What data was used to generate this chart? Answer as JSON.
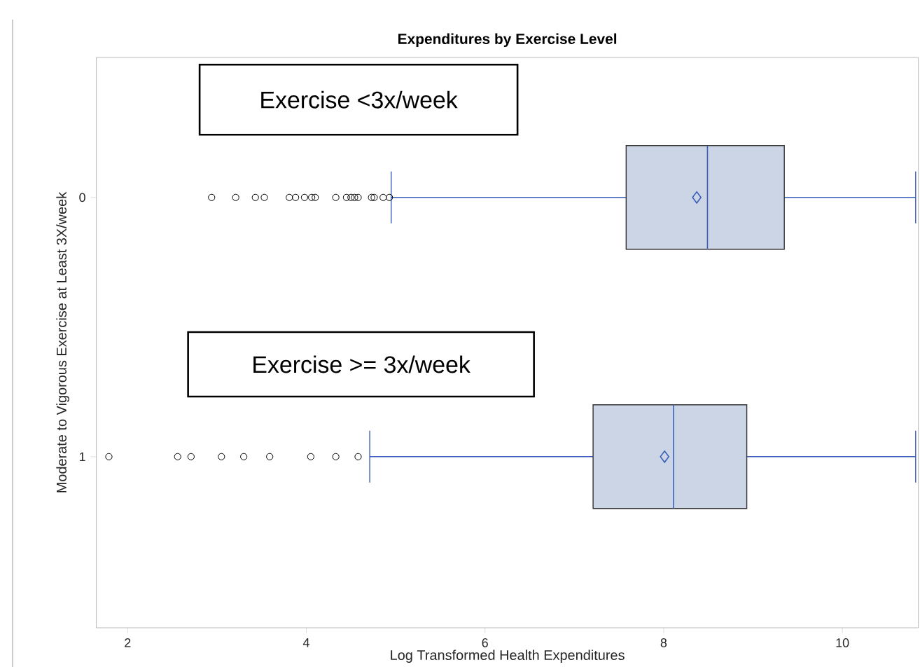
{
  "chart_data": {
    "type": "box",
    "title": "Expenditures by Exercise Level",
    "xlabel": "Log Transformed Health Expenditures",
    "ylabel": "Moderate to Vigorous Exercise at Least 3X/week",
    "orientation": "horizontal",
    "categories": [
      "0",
      "1"
    ],
    "xlim": [
      1.65,
      10.85
    ],
    "xticks": [
      2,
      4,
      6,
      8,
      10
    ],
    "grid": false,
    "color": "#cbd5e6",
    "boxes": [
      {
        "low": 4.95,
        "q1": 7.58,
        "median": 8.49,
        "q3": 9.35,
        "high": 10.82,
        "mean": 8.37,
        "outliers": [
          2.94,
          3.21,
          3.43,
          3.53,
          3.81,
          3.88,
          3.98,
          4.06,
          4.1,
          4.33,
          4.45,
          4.5,
          4.54,
          4.58,
          4.73,
          4.76,
          4.86,
          4.93
        ]
      },
      {
        "low": 4.71,
        "q1": 7.21,
        "median": 8.11,
        "q3": 8.93,
        "high": 10.82,
        "mean": 8.01,
        "outliers": [
          1.79,
          2.56,
          2.71,
          3.05,
          3.3,
          3.59,
          4.05,
          4.33,
          4.58
        ]
      }
    ],
    "annotations": [
      "Exercise <3x/week",
      "Exercise >= 3x/week"
    ]
  }
}
